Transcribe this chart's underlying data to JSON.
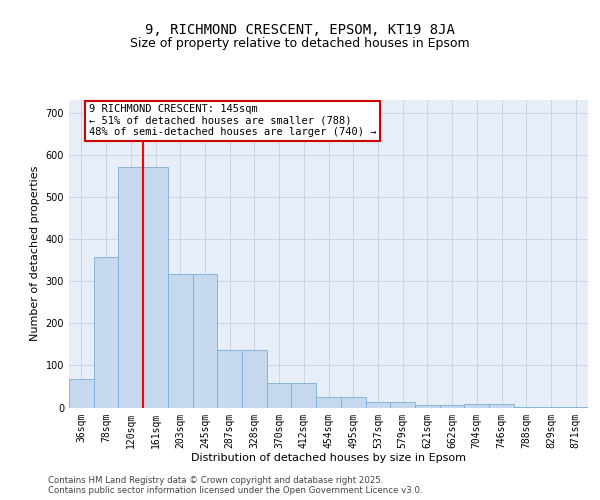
{
  "title_line1": "9, RICHMOND CRESCENT, EPSOM, KT19 8JA",
  "title_line2": "Size of property relative to detached houses in Epsom",
  "xlabel": "Distribution of detached houses by size in Epsom",
  "ylabel": "Number of detached properties",
  "categories": [
    "36sqm",
    "78sqm",
    "120sqm",
    "161sqm",
    "203sqm",
    "245sqm",
    "287sqm",
    "328sqm",
    "370sqm",
    "412sqm",
    "454sqm",
    "495sqm",
    "537sqm",
    "579sqm",
    "621sqm",
    "662sqm",
    "704sqm",
    "746sqm",
    "788sqm",
    "829sqm",
    "871sqm"
  ],
  "values": [
    68,
    358,
    572,
    572,
    317,
    317,
    137,
    137,
    57,
    57,
    25,
    25,
    13,
    13,
    7,
    7,
    9,
    9,
    2,
    2,
    2
  ],
  "bar_color": "#c5d8ed",
  "bar_edge_color": "#7aaed6",
  "grid_color": "#c8d4e8",
  "bg_color": "#e8eef8",
  "annotation_text": "9 RICHMOND CRESCENT: 145sqm\n← 51% of detached houses are smaller (788)\n48% of semi-detached houses are larger (740) →",
  "annotation_box_color": "#ffffff",
  "annotation_box_edge": "#cc0000",
  "ylim": [
    0,
    730
  ],
  "yticks": [
    0,
    100,
    200,
    300,
    400,
    500,
    600,
    700
  ],
  "footer": "Contains HM Land Registry data © Crown copyright and database right 2025.\nContains public sector information licensed under the Open Government Licence v3.0.",
  "title_fontsize": 10,
  "subtitle_fontsize": 9,
  "axis_label_fontsize": 8,
  "tick_fontsize": 7,
  "annotation_fontsize": 7.5
}
